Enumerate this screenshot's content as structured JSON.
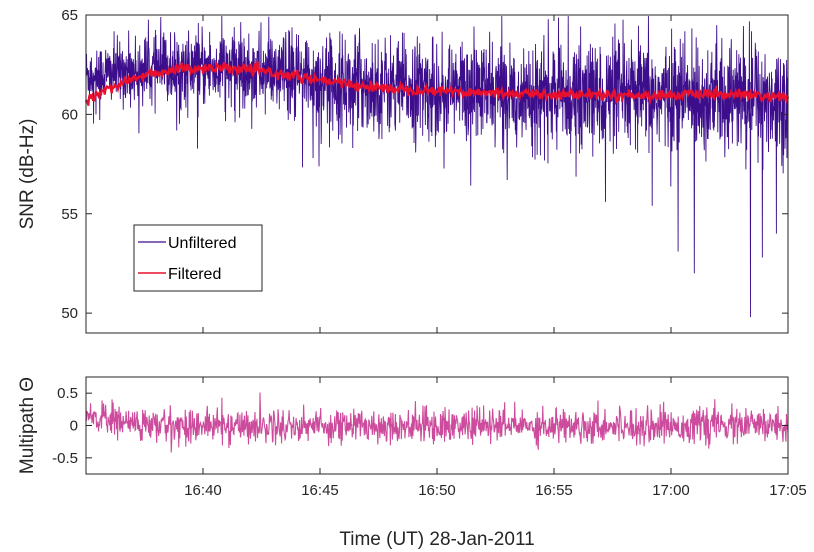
{
  "colors": {
    "unfiltered": "#3d0e8c",
    "filtered": "#e8102e",
    "multipath": "#cc4b9c",
    "axis": "#262626"
  },
  "xlabel": "Time (UT) 28-Jan-2011",
  "chart_data": [
    {
      "type": "line",
      "ylabel": "SNR (dB-Hz)",
      "xlim_min": [
        995,
        1025
      ],
      "ylim": [
        49,
        65
      ],
      "xtick_minutes": [
        1000,
        1005,
        1010,
        1015,
        1020,
        1025
      ],
      "xticks": [
        "16:40",
        "16:45",
        "16:50",
        "16:55",
        "17:00",
        "17:05"
      ],
      "yticks": [
        50,
        55,
        60,
        65
      ],
      "ytick_labels": [
        "50",
        "55",
        "60",
        "65"
      ],
      "legend": {
        "placement": "lower-left",
        "entries": [
          "Unfiltered",
          "Filtered"
        ]
      },
      "series": [
        {
          "name": "Unfiltered",
          "trend_x": [
            995,
            997,
            999,
            1001,
            1003,
            1006,
            1010,
            1015,
            1020,
            1025
          ],
          "trend_y": [
            62.0,
            62.2,
            62.3,
            62.3,
            62.1,
            61.6,
            61.2,
            61.0,
            60.9,
            60.8
          ],
          "noise_sd": [
            1.2,
            1.3,
            1.5,
            1.6,
            1.7,
            1.9,
            2.0,
            2.1,
            2.2,
            2.3
          ],
          "spikes": [
            [
              1028.5,
              58.3
            ],
            [
              1013.0,
              56.7
            ],
            [
              1020.3,
              53.1
            ],
            [
              1021.0,
              52.0
            ],
            [
              1023.4,
              49.8
            ],
            [
              1023.9,
              52.8
            ],
            [
              1024.5,
              54.0
            ],
            [
              1017.2,
              55.6
            ],
            [
              1019.2,
              55.4
            ],
            [
              1004.7,
              57.8
            ]
          ],
          "peaks": [
            [
              998.2,
              64.9
            ],
            [
              1002.4,
              64.2
            ],
            [
              1006.5,
              64.0
            ],
            [
              1020.4,
              63.8
            ],
            [
              1023.6,
              63.6
            ],
            [
              1011.0,
              63.4
            ]
          ]
        },
        {
          "name": "Filtered",
          "x": [
            995,
            996,
            997,
            998,
            999,
            1000,
            1001,
            1002,
            1003,
            1004,
            1005,
            1007,
            1009,
            1011,
            1013,
            1015,
            1017,
            1019,
            1021,
            1023,
            1025
          ],
          "y": [
            60.7,
            61.3,
            61.8,
            62.1,
            62.3,
            62.3,
            62.3,
            62.25,
            62.1,
            61.9,
            61.7,
            61.4,
            61.25,
            61.15,
            61.05,
            61.0,
            61.0,
            60.95,
            61.0,
            61.0,
            60.8
          ]
        }
      ]
    },
    {
      "type": "line",
      "ylabel": "Multipath Θ",
      "ylim": [
        -0.75,
        0.75
      ],
      "yticks": [
        -0.5,
        0,
        0.5
      ],
      "ytick_labels": [
        "-0.5",
        "0",
        "0.5"
      ],
      "xticks": [
        "16:40",
        "16:45",
        "16:50",
        "16:55",
        "17:00",
        "17:05"
      ],
      "series": [
        {
          "name": "Multipath",
          "mean": 0.0,
          "amplitude": 0.18,
          "start_offset": 0.15
        }
      ]
    }
  ]
}
